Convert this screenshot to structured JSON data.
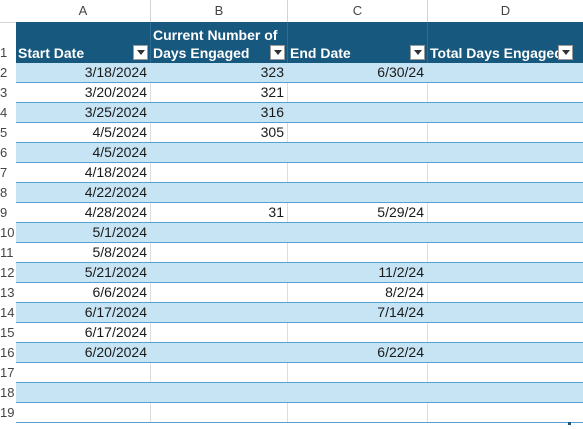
{
  "columns": [
    "A",
    "B",
    "C",
    "D"
  ],
  "row_numbers": [
    "1",
    "2",
    "3",
    "4",
    "5",
    "6",
    "7",
    "8",
    "9",
    "10",
    "11",
    "12",
    "13",
    "14",
    "15",
    "16",
    "17",
    "18",
    "19"
  ],
  "headers": {
    "start_date": "Start Date",
    "current_days_line1": "Current Number of",
    "current_days_line2": "Days Engaged",
    "end_date": "End Date",
    "total_days": "Total Days Engaged"
  },
  "rows": [
    {
      "start": "3/18/2024",
      "current": "323",
      "end": "6/30/24",
      "total": ""
    },
    {
      "start": "3/20/2024",
      "current": "321",
      "end": "",
      "total": ""
    },
    {
      "start": "3/25/2024",
      "current": "316",
      "end": "",
      "total": ""
    },
    {
      "start": "4/5/2024",
      "current": "305",
      "end": "",
      "total": ""
    },
    {
      "start": "4/5/2024",
      "current": "",
      "end": "",
      "total": ""
    },
    {
      "start": "4/18/2024",
      "current": "",
      "end": "",
      "total": ""
    },
    {
      "start": "4/22/2024",
      "current": "",
      "end": "",
      "total": ""
    },
    {
      "start": "4/28/2024",
      "current": "31",
      "end": "5/29/24",
      "total": ""
    },
    {
      "start": "5/1/2024",
      "current": "",
      "end": "",
      "total": ""
    },
    {
      "start": "5/8/2024",
      "current": "",
      "end": "",
      "total": ""
    },
    {
      "start": "5/21/2024",
      "current": "",
      "end": "11/2/24",
      "total": ""
    },
    {
      "start": "6/6/2024",
      "current": "",
      "end": "8/2/24",
      "total": ""
    },
    {
      "start": "6/17/2024",
      "current": "",
      "end": "7/14/24",
      "total": ""
    },
    {
      "start": "6/17/2024",
      "current": "",
      "end": "",
      "total": ""
    },
    {
      "start": "6/20/2024",
      "current": "",
      "end": "6/22/24",
      "total": ""
    },
    {
      "start": "",
      "current": "",
      "end": "",
      "total": ""
    },
    {
      "start": "",
      "current": "",
      "end": "",
      "total": ""
    },
    {
      "start": "",
      "current": "",
      "end": "",
      "total": ""
    }
  ],
  "colors": {
    "header_bg": "#17587f",
    "band_bg": "#c6e4f4",
    "row_border": "#5aa0cf"
  }
}
